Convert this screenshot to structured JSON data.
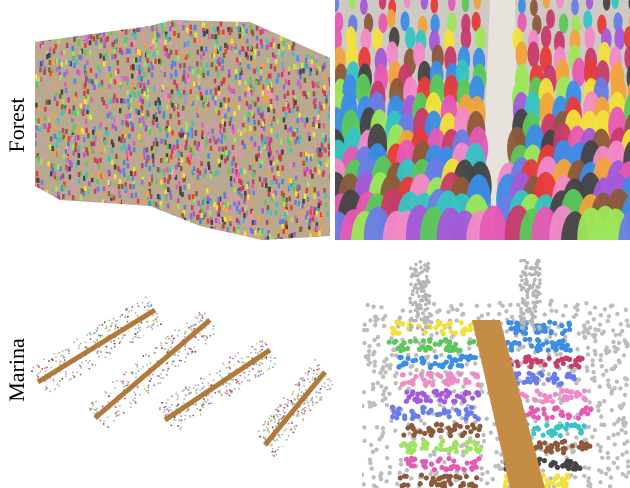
{
  "row_labels": [
    "Forest",
    "Marina"
  ]
}
